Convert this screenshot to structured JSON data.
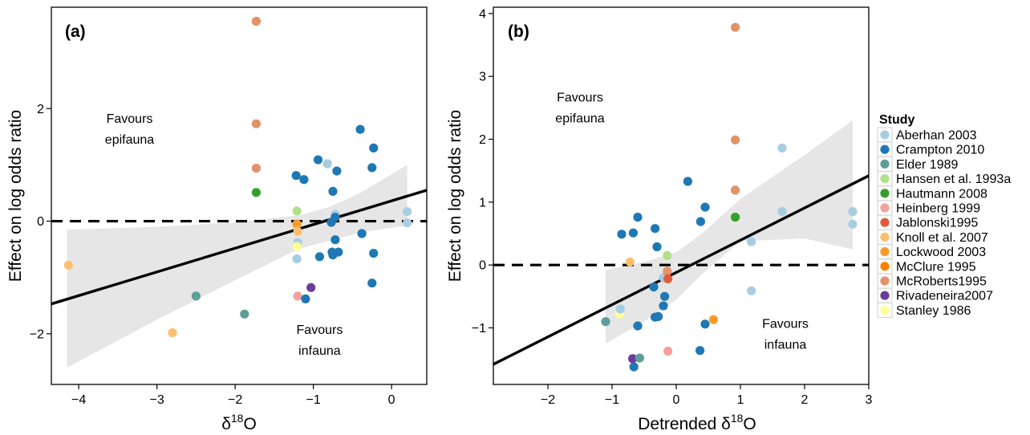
{
  "chart_data": [
    {
      "type": "scatter",
      "panel_label": "(a)",
      "xlabel_base": "δ",
      "xlabel_sup": "18",
      "xlabel_tail": "O",
      "ylabel": "Effect on log odds ratio",
      "xlim": [
        -4.35,
        0.45
      ],
      "ylim": [
        -2.9,
        3.8
      ],
      "xticks": [
        -4,
        -3,
        -2,
        -1,
        0
      ],
      "yticks": [
        -2,
        0,
        2
      ],
      "x_tick_labels": [
        "−4",
        "−3",
        "−2",
        "−1",
        "0"
      ],
      "y_tick_labels": [
        "−2",
        "0",
        "2"
      ],
      "annotations": [
        {
          "lines": [
            "Favours",
            "epifauna"
          ],
          "x": -3.35,
          "y": 1.75
        },
        {
          "lines": [
            "Favours",
            "infauna"
          ],
          "x": -0.92,
          "y": -2.0
        }
      ],
      "reference_line_y": 0,
      "regression": {
        "x": [
          -4.35,
          0.45
        ],
        "y": [
          -1.47,
          0.55
        ]
      },
      "confidence_band": {
        "x": [
          -4.15,
          -3.0,
          -2.0,
          -1.2,
          -0.8,
          -0.4,
          0.2
        ],
        "upper": [
          -0.15,
          -0.1,
          -0.02,
          0.1,
          0.25,
          0.5,
          1.0
        ],
        "lower": [
          -2.6,
          -1.75,
          -1.05,
          -0.5,
          -0.35,
          -0.2,
          -0.08
        ]
      },
      "points": [
        {
          "study": "Knoll et al. 2007",
          "x": -4.13,
          "y": -0.78
        },
        {
          "study": "Knoll et al. 2007",
          "x": -2.8,
          "y": -1.98
        },
        {
          "study": "Elder 1989",
          "x": -2.5,
          "y": -1.33
        },
        {
          "study": "Elder 1989",
          "x": -1.88,
          "y": -1.65
        },
        {
          "study": "McRoberts1995",
          "x": -1.73,
          "y": 3.55
        },
        {
          "study": "McRoberts1995",
          "x": -1.73,
          "y": 1.73
        },
        {
          "study": "McRoberts1995",
          "x": -1.73,
          "y": 0.94
        },
        {
          "study": "Hautmann 2008",
          "x": -1.73,
          "y": 0.51
        },
        {
          "study": "Hansen et al. 1993a",
          "x": -1.21,
          "y": 0.18
        },
        {
          "study": "Lockwood 2003",
          "x": -1.21,
          "y": -0.05
        },
        {
          "study": "Knoll et al. 2007",
          "x": -1.2,
          "y": -0.18
        },
        {
          "study": "Aberhan 2003",
          "x": -1.2,
          "y": -0.38
        },
        {
          "study": "Stanley 1986",
          "x": -1.21,
          "y": -0.45
        },
        {
          "study": "Aberhan 2003",
          "x": -1.21,
          "y": -0.67
        },
        {
          "study": "Heinberg 1999",
          "x": -1.2,
          "y": -1.33
        },
        {
          "study": "Rivadeneira2007",
          "x": -1.03,
          "y": -1.18
        },
        {
          "study": "Crampton 2010",
          "x": -1.22,
          "y": 0.81
        },
        {
          "study": "Crampton 2010",
          "x": -1.12,
          "y": 0.74
        },
        {
          "study": "Crampton 2010",
          "x": -0.94,
          "y": 1.09
        },
        {
          "study": "Aberhan 2003",
          "x": -0.82,
          "y": 1.02
        },
        {
          "study": "Crampton 2010",
          "x": -0.7,
          "y": 0.89
        },
        {
          "study": "Crampton 2010",
          "x": -0.75,
          "y": 0.53
        },
        {
          "study": "Aberhan 2003",
          "x": -0.72,
          "y": 0.12
        },
        {
          "study": "Crampton 2010",
          "x": -0.72,
          "y": 0.07
        },
        {
          "study": "Crampton 2010",
          "x": -0.77,
          "y": -0.02
        },
        {
          "study": "Crampton 2010",
          "x": -0.72,
          "y": -0.33
        },
        {
          "study": "Crampton 2010",
          "x": -0.76,
          "y": -0.55
        },
        {
          "study": "Crampton 2010",
          "x": -0.68,
          "y": -0.55
        },
        {
          "study": "Crampton 2010",
          "x": -0.75,
          "y": -0.6
        },
        {
          "study": "Crampton 2010",
          "x": -0.92,
          "y": -0.63
        },
        {
          "study": "Crampton 2010",
          "x": -1.1,
          "y": -1.38
        },
        {
          "study": "Crampton 2010",
          "x": -0.4,
          "y": 1.63
        },
        {
          "study": "Crampton 2010",
          "x": -0.23,
          "y": 1.3
        },
        {
          "study": "Crampton 2010",
          "x": -0.25,
          "y": 0.95
        },
        {
          "study": "Crampton 2010",
          "x": -0.38,
          "y": -0.22
        },
        {
          "study": "Crampton 2010",
          "x": -0.23,
          "y": -0.57
        },
        {
          "study": "Crampton 2010",
          "x": -0.25,
          "y": -1.1
        },
        {
          "study": "Aberhan 2003",
          "x": 0.2,
          "y": 0.17
        },
        {
          "study": "Aberhan 2003",
          "x": 0.2,
          "y": -0.03
        }
      ]
    },
    {
      "type": "scatter",
      "panel_label": "(b)",
      "xlabel_base": "Detrended δ",
      "xlabel_sup": "18",
      "xlabel_tail": "O",
      "ylabel": "Effect on log odds ratio",
      "xlim": [
        -2.85,
        3.0
      ],
      "ylim": [
        -1.9,
        4.1
      ],
      "xticks": [
        -2,
        -1,
        0,
        1,
        2,
        3
      ],
      "yticks": [
        -1,
        0,
        1,
        2,
        3,
        4
      ],
      "x_tick_labels": [
        "−2",
        "−1",
        "0",
        "1",
        "2",
        "3"
      ],
      "y_tick_labels": [
        "−1",
        "0",
        "1",
        "2",
        "3",
        "4"
      ],
      "annotations": [
        {
          "lines": [
            "Favours",
            "epifauna"
          ],
          "x": -1.5,
          "y": 2.6
        },
        {
          "lines": [
            "Favours",
            "infauna"
          ],
          "x": 1.7,
          "y": -1.0
        }
      ],
      "reference_line_y": 0,
      "regression": {
        "x": [
          -2.85,
          3.0
        ],
        "y": [
          -1.58,
          1.42
        ]
      },
      "confidence_band": {
        "x": [
          -1.1,
          -0.5,
          0.0,
          0.4,
          1.0,
          2.0,
          2.75
        ],
        "upper": [
          -0.08,
          0.05,
          0.2,
          0.5,
          1.05,
          1.75,
          2.3
        ],
        "lower": [
          -1.25,
          -0.9,
          -0.55,
          -0.15,
          0.38,
          0.42,
          0.25
        ]
      },
      "points": [
        {
          "study": "Elder 1989",
          "x": -1.1,
          "y": -0.9
        },
        {
          "study": "Stanley 1986",
          "x": -0.88,
          "y": -0.78
        },
        {
          "study": "Aberhan 2003",
          "x": -0.87,
          "y": -0.7
        },
        {
          "study": "Crampton 2010",
          "x": -0.85,
          "y": 0.49
        },
        {
          "study": "Crampton 2010",
          "x": -0.67,
          "y": 0.51
        },
        {
          "study": "Crampton 2010",
          "x": -0.6,
          "y": 0.76
        },
        {
          "study": "Knoll et al. 2007",
          "x": -0.72,
          "y": 0.05
        },
        {
          "study": "Rivadeneira2007",
          "x": -0.68,
          "y": -1.49
        },
        {
          "study": "Crampton 2010",
          "x": -0.66,
          "y": -1.62
        },
        {
          "study": "Elder 1989",
          "x": -0.57,
          "y": -1.48
        },
        {
          "study": "Crampton 2010",
          "x": -0.6,
          "y": -0.97
        },
        {
          "study": "Crampton 2010",
          "x": -0.33,
          "y": 0.58
        },
        {
          "study": "Crampton 2010",
          "x": -0.3,
          "y": 0.29
        },
        {
          "study": "Crampton 2010",
          "x": -0.35,
          "y": -0.35
        },
        {
          "study": "Crampton 2010",
          "x": -0.33,
          "y": -0.83
        },
        {
          "study": "Crampton 2010",
          "x": -0.28,
          "y": -0.82
        },
        {
          "study": "Aberhan 2003",
          "x": -0.2,
          "y": -0.2
        },
        {
          "study": "Crampton 2010",
          "x": -0.2,
          "y": -0.65
        },
        {
          "study": "Crampton 2010",
          "x": -0.18,
          "y": -0.5
        },
        {
          "study": "Hansen et al. 1993a",
          "x": -0.14,
          "y": 0.15
        },
        {
          "study": "McRoberts1995",
          "x": -0.14,
          "y": -0.1
        },
        {
          "study": "Jablonski1995",
          "x": -0.13,
          "y": -0.22
        },
        {
          "study": "Heinberg 1999",
          "x": -0.13,
          "y": -1.37
        },
        {
          "study": "Crampton 2010",
          "x": 0.18,
          "y": 1.33
        },
        {
          "study": "Crampton 2010",
          "x": 0.45,
          "y": 0.92
        },
        {
          "study": "Crampton 2010",
          "x": 0.38,
          "y": 0.69
        },
        {
          "study": "Crampton 2010",
          "x": 0.45,
          "y": -0.94
        },
        {
          "study": "Crampton 2010",
          "x": 0.37,
          "y": -1.36
        },
        {
          "study": "Lockwood 2003",
          "x": 0.58,
          "y": -0.87
        },
        {
          "study": "McRoberts1995",
          "x": 0.92,
          "y": 3.78
        },
        {
          "study": "McRoberts1995",
          "x": 0.92,
          "y": 1.99
        },
        {
          "study": "McRoberts1995",
          "x": 0.92,
          "y": 1.19
        },
        {
          "study": "Hautmann 2008",
          "x": 0.92,
          "y": 0.76
        },
        {
          "study": "Aberhan 2003",
          "x": 1.17,
          "y": 0.37
        },
        {
          "study": "Aberhan 2003",
          "x": 1.17,
          "y": -0.41
        },
        {
          "study": "Aberhan 2003",
          "x": 1.65,
          "y": 1.86
        },
        {
          "study": "Aberhan 2003",
          "x": 1.65,
          "y": 0.85
        },
        {
          "study": "Aberhan 2003",
          "x": 2.75,
          "y": 0.85
        },
        {
          "study": "Aberhan 2003",
          "x": 2.75,
          "y": 0.65
        }
      ]
    }
  ],
  "legend": {
    "title": "Study",
    "placement": "right",
    "entries": [
      {
        "label": "Aberhan 2003",
        "color": "#a6cee3"
      },
      {
        "label": "Crampton 2010",
        "color": "#1f78b4"
      },
      {
        "label": "Elder 1989",
        "color": "#5f9e98"
      },
      {
        "label": "Hansen et al. 1993a",
        "color": "#b2df8a"
      },
      {
        "label": "Hautmann 2008",
        "color": "#33a02c"
      },
      {
        "label": "Heinberg 1999",
        "color": "#f4a09b"
      },
      {
        "label": "Jablonski1995",
        "color": "#e05b3c"
      },
      {
        "label": "Knoll et al. 2007",
        "color": "#fdbf6f"
      },
      {
        "label": "Lockwood 2003",
        "color": "#f79c2a"
      },
      {
        "label": "McClure 1995",
        "color": "#ff7f00"
      },
      {
        "label": "McRoberts1995",
        "color": "#e2926a"
      },
      {
        "label": "Rivadeneira2007",
        "color": "#6a3d9a"
      },
      {
        "label": "Stanley 1986",
        "color": "#ffff99"
      }
    ]
  }
}
